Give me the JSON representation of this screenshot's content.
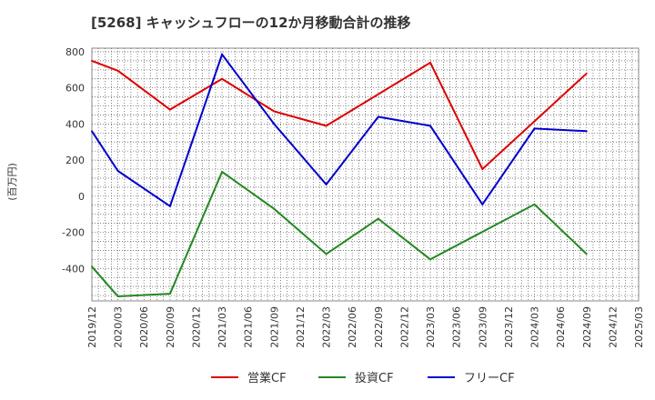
{
  "chart_data": {
    "type": "line",
    "title": "[5268]  キャッシュフローの12か月移動合計の推移",
    "ylabel": "(百万円)",
    "xlabel": "",
    "ylim": [
      -580,
      820
    ],
    "yticks": [
      800,
      600,
      400,
      200,
      0,
      -200,
      -400
    ],
    "categories": [
      "2019/12",
      "2020/03",
      "2020/06",
      "2020/09",
      "2020/12",
      "2021/03",
      "2021/06",
      "2021/09",
      "2021/12",
      "2022/03",
      "2022/06",
      "2022/09",
      "2022/12",
      "2023/03",
      "2023/06",
      "2023/09",
      "2023/12",
      "2024/03",
      "2024/06",
      "2024/09",
      "2024/12",
      "2025/03"
    ],
    "series": [
      {
        "name": "営業CF",
        "color": "#dd0000",
        "values": [
          750,
          695,
          null,
          480,
          null,
          650,
          null,
          470,
          null,
          390,
          null,
          null,
          null,
          740,
          null,
          150,
          null,
          null,
          null,
          680,
          null,
          null
        ]
      },
      {
        "name": "投資CF",
        "color": "#228822",
        "values": [
          -390,
          -555,
          null,
          -540,
          null,
          135,
          null,
          -70,
          null,
          -320,
          null,
          -125,
          null,
          -350,
          null,
          null,
          null,
          -45,
          null,
          -320,
          null,
          null
        ]
      },
      {
        "name": "フリーCF",
        "color": "#0000cc",
        "values": [
          360,
          140,
          null,
          -55,
          null,
          785,
          null,
          400,
          null,
          65,
          null,
          440,
          null,
          390,
          null,
          -45,
          null,
          375,
          null,
          360,
          null,
          null
        ]
      }
    ],
    "grid": true,
    "legend_position": "bottom"
  }
}
